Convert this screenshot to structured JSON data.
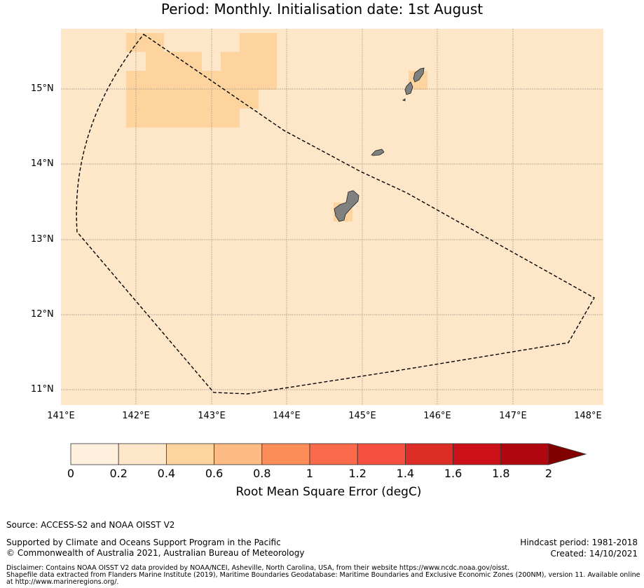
{
  "title": "Period: Monthly. Initialisation date: 1st August",
  "map": {
    "lat_labels": [
      "15°N",
      "14°N",
      "13°N",
      "12°N",
      "11°N"
    ],
    "lon_labels": [
      "141°E",
      "142°E",
      "143°E",
      "144°E",
      "145°E",
      "146°E",
      "147°E",
      "148°E"
    ],
    "extent": {
      "lon": [
        141,
        148.2
      ],
      "lat": [
        10.8,
        15.8
      ]
    },
    "background_class": "0.2–0.4",
    "colors": {
      "ocean": "#fee6c8",
      "elevated": "#fdd49e",
      "land": "#808080",
      "grid": "#b0a594"
    }
  },
  "colorbar": {
    "ticks": [
      "0",
      "0.2",
      "0.4",
      "0.6",
      "0.8",
      "1",
      "1.2",
      "1.4",
      "1.6",
      "1.8",
      "2"
    ],
    "colors": [
      "#fff0de",
      "#fee6c8",
      "#fdd49e",
      "#fdbb84",
      "#fc8d59",
      "#fb6a4a",
      "#f75040",
      "#de2d26",
      "#cb1017",
      "#b00610"
    ],
    "extend_color": "#800000",
    "label": "Root Mean Square Error (degC)"
  },
  "footer": {
    "source": "Source: ACCESS-S2 and NOAA OISST V2",
    "supported": "Supported by Climate and Oceans Support Program in the Pacific",
    "copyright": "© Commonwealth of Australia 2021, Australian Bureau of Meteorology",
    "hindcast": "Hindcast period: 1981-2018",
    "created": "Created: 14/10/2021",
    "disclaimer_1": "Disclaimer: Contains NOAA OISST V2 data provided by NOAA/NCEI, Asheville, North Carolina, USA, from their website https://www.ncdc.noaa.gov/oisst.",
    "disclaimer_2": "Shapefile data extracted from Flanders Marine Institute (2019), Maritime Boundaries Geodatabase: Maritime Boundaries and Exclusive Economic Zones (200NM), version 11. Available online at http://www.marineregions.org/."
  }
}
